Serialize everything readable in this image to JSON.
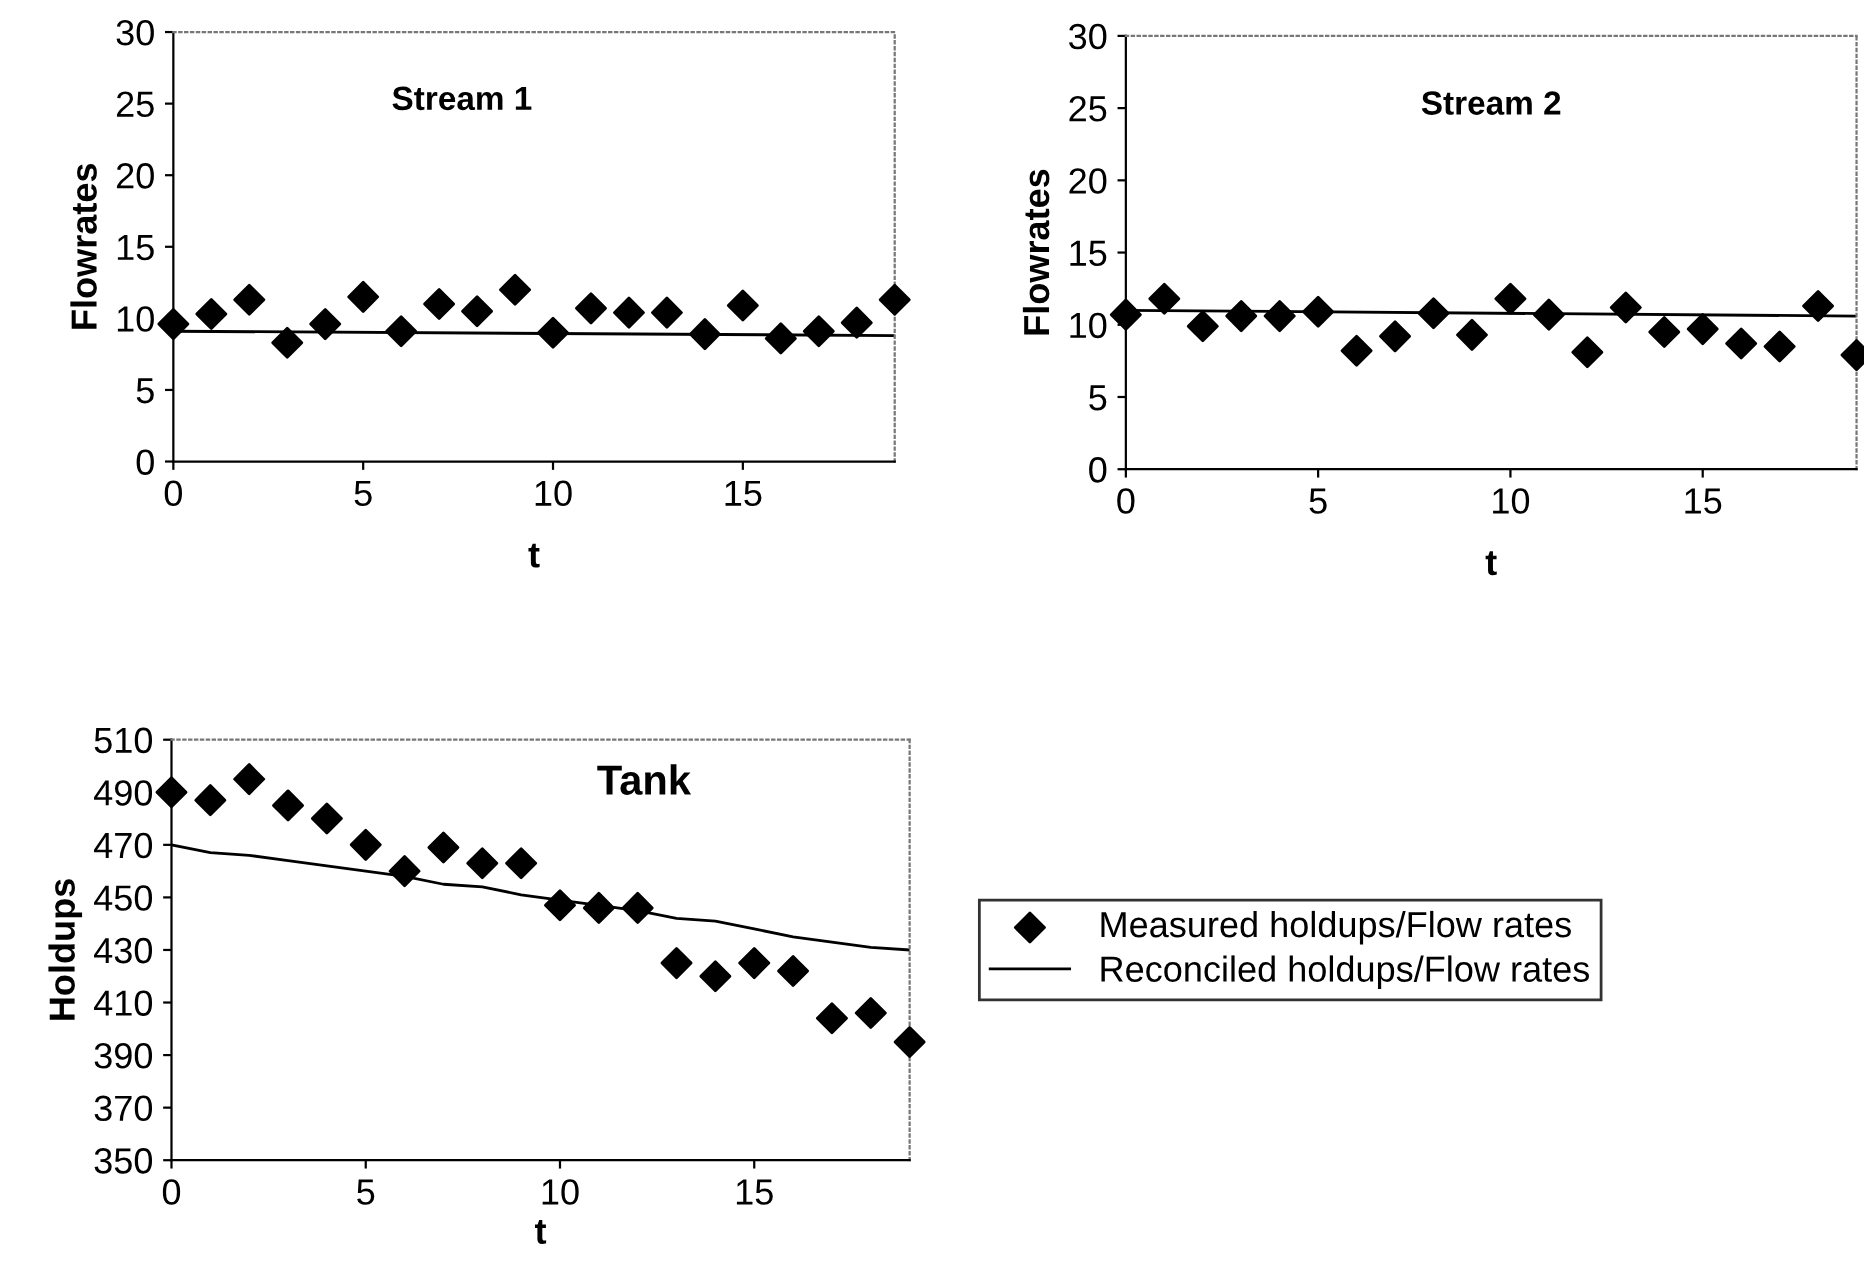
{
  "chart_data": [
    {
      "type": "scatter",
      "title": "Stream 1",
      "xlabel": "t",
      "ylabel": "Flowrates",
      "xlim": [
        0,
        19
      ],
      "xticks": [
        0,
        5,
        10,
        15
      ],
      "ylim": [
        0,
        30
      ],
      "yticks": [
        0,
        5,
        10,
        15,
        20,
        25,
        30
      ],
      "grid": false,
      "legend": false,
      "series": [
        {
          "marker": "diamond",
          "color": "#000000",
          "x": [
            0,
            1,
            2,
            3,
            4,
            5,
            6,
            7,
            8,
            9,
            10,
            11,
            12,
            13,
            14,
            15,
            16,
            17,
            18,
            19
          ],
          "values": [
            9.6,
            10.3,
            11.3,
            8.3,
            9.6,
            11.5,
            9.1,
            11.0,
            10.5,
            12.0,
            9.0,
            10.7,
            10.4,
            10.4,
            8.9,
            10.9,
            8.6,
            9.1,
            9.7,
            11.3
          ]
        },
        {
          "type": "line",
          "marker": "none",
          "color": "#000000",
          "x": [
            0,
            19
          ],
          "values": [
            9.1,
            8.8
          ]
        }
      ]
    },
    {
      "type": "scatter",
      "title": "Stream 2",
      "xlabel": "t",
      "ylabel": "Flowrates",
      "xlim": [
        0,
        19
      ],
      "xticks": [
        0,
        5,
        10,
        15
      ],
      "ylim": [
        0,
        30
      ],
      "yticks": [
        0,
        5,
        10,
        15,
        20,
        25,
        30
      ],
      "grid": false,
      "legend": false,
      "series": [
        {
          "marker": "diamond",
          "color": "#000000",
          "x": [
            0,
            1,
            2,
            3,
            4,
            5,
            6,
            7,
            8,
            9,
            10,
            11,
            12,
            13,
            14,
            15,
            16,
            17,
            18,
            19
          ],
          "values": [
            10.7,
            11.8,
            9.9,
            10.6,
            10.6,
            10.9,
            8.2,
            9.2,
            10.8,
            9.3,
            11.8,
            10.7,
            8.1,
            11.2,
            9.5,
            9.7,
            8.7,
            8.5,
            11.3,
            7.9
          ]
        },
        {
          "type": "line",
          "marker": "none",
          "color": "#000000",
          "x": [
            0,
            19
          ],
          "values": [
            11.0,
            10.6
          ]
        }
      ]
    },
    {
      "type": "scatter",
      "title": "Tank",
      "xlabel": "t",
      "ylabel": "Holdups",
      "xlim": [
        0,
        19
      ],
      "xticks": [
        0,
        5,
        10,
        15
      ],
      "ylim": [
        350,
        510
      ],
      "yticks": [
        350,
        370,
        390,
        410,
        430,
        450,
        470,
        490,
        510
      ],
      "grid": false,
      "legend": "right",
      "series": [
        {
          "marker": "diamond",
          "name": "Measured holdups/Flow rates",
          "color": "#000000",
          "x": [
            0,
            1,
            2,
            3,
            4,
            5,
            6,
            7,
            8,
            9,
            10,
            11,
            12,
            13,
            14,
            15,
            16,
            17,
            18,
            19
          ],
          "values": [
            490,
            487,
            495,
            485,
            480,
            470,
            460,
            469,
            463,
            463,
            447,
            446,
            446,
            425,
            420,
            425,
            422,
            404,
            406,
            395
          ]
        },
        {
          "type": "line",
          "marker": "none",
          "name": "Reconciled holdups/Flow rates",
          "color": "#000000",
          "x": [
            0,
            1,
            2,
            3,
            4,
            5,
            6,
            7,
            8,
            9,
            10,
            11,
            12,
            13,
            14,
            15,
            16,
            17,
            18,
            19
          ],
          "values": [
            470,
            467,
            466,
            464,
            462,
            460,
            458,
            455,
            454,
            451,
            449,
            447,
            445,
            442,
            441,
            438,
            435,
            433,
            431,
            430
          ]
        }
      ]
    }
  ]
}
